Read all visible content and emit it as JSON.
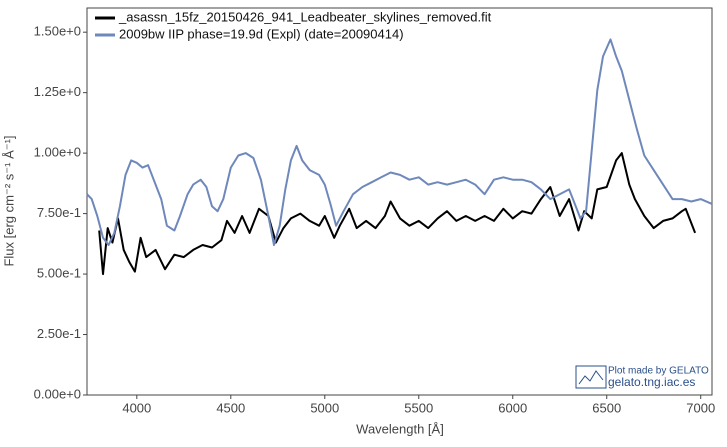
{
  "chart_data": {
    "type": "line",
    "xlabel": "Wavelength [Å]",
    "ylabel": "Flux [erg cm⁻² s⁻¹ Å⁻¹]",
    "legend": "upper left",
    "credit": [
      "Plot made by GELATO",
      "gelato.tng.iac.es"
    ],
    "xlim": [
      3735,
      7060
    ],
    "xticks": [
      4000,
      4500,
      5000,
      5500,
      6000,
      6500,
      7000
    ],
    "ylim": [
      0,
      1.6
    ],
    "yticks": [
      {
        "value": 0,
        "label": "0.00e+0"
      },
      {
        "value": 0.25,
        "label": "2.50e-1"
      },
      {
        "value": 0.5,
        "label": "5.00e-1"
      },
      {
        "value": 0.75,
        "label": "7.50e-1"
      },
      {
        "value": 1.0,
        "label": "1.00e+0"
      },
      {
        "value": 1.25,
        "label": "1.25e+0"
      },
      {
        "value": 1.5,
        "label": "1.50e+0"
      }
    ],
    "series": [
      {
        "name": "_asassn_15fz_20150426_941_Leadbeater_skylines_removed.fit",
        "color": "#000000",
        "x": [
          3800,
          3820,
          3845,
          3870,
          3900,
          3930,
          3960,
          3990,
          4020,
          4050,
          4100,
          4150,
          4200,
          4250,
          4300,
          4350,
          4400,
          4450,
          4480,
          4520,
          4560,
          4600,
          4650,
          4700,
          4740,
          4780,
          4820,
          4870,
          4920,
          4970,
          5000,
          5050,
          5080,
          5130,
          5170,
          5220,
          5270,
          5320,
          5350,
          5400,
          5450,
          5500,
          5550,
          5600,
          5650,
          5700,
          5750,
          5800,
          5850,
          5900,
          5950,
          6000,
          6050,
          6100,
          6150,
          6200,
          6250,
          6300,
          6350,
          6380,
          6420,
          6450,
          6500,
          6550,
          6580,
          6620,
          6650,
          6700,
          6750,
          6800,
          6850,
          6900,
          6920,
          6970
        ],
        "values": [
          0.68,
          0.5,
          0.69,
          0.63,
          0.73,
          0.6,
          0.55,
          0.51,
          0.65,
          0.57,
          0.6,
          0.52,
          0.58,
          0.57,
          0.6,
          0.62,
          0.61,
          0.64,
          0.72,
          0.67,
          0.74,
          0.67,
          0.77,
          0.74,
          0.63,
          0.69,
          0.73,
          0.75,
          0.72,
          0.7,
          0.74,
          0.65,
          0.7,
          0.77,
          0.69,
          0.72,
          0.69,
          0.74,
          0.8,
          0.73,
          0.7,
          0.72,
          0.69,
          0.73,
          0.76,
          0.72,
          0.74,
          0.72,
          0.74,
          0.72,
          0.77,
          0.73,
          0.76,
          0.75,
          0.81,
          0.86,
          0.74,
          0.81,
          0.68,
          0.76,
          0.73,
          0.85,
          0.86,
          0.97,
          1.0,
          0.87,
          0.81,
          0.74,
          0.69,
          0.72,
          0.73,
          0.76,
          0.77,
          0.67
        ]
      },
      {
        "name": "2009bw  IIP  phase=19.9d (Expl)  (date=20090414)",
        "color": "#6f88bb",
        "x": [
          3735,
          3760,
          3790,
          3820,
          3850,
          3880,
          3910,
          3940,
          3970,
          4000,
          4030,
          4060,
          4100,
          4130,
          4160,
          4200,
          4230,
          4270,
          4300,
          4340,
          4370,
          4400,
          4430,
          4460,
          4500,
          4540,
          4580,
          4620,
          4660,
          4700,
          4730,
          4760,
          4790,
          4820,
          4850,
          4880,
          4920,
          4970,
          5000,
          5030,
          5060,
          5100,
          5150,
          5200,
          5250,
          5300,
          5350,
          5400,
          5450,
          5500,
          5550,
          5600,
          5650,
          5700,
          5750,
          5800,
          5850,
          5900,
          5950,
          6000,
          6050,
          6100,
          6150,
          6200,
          6250,
          6300,
          6330,
          6360,
          6390,
          6420,
          6450,
          6480,
          6520,
          6550,
          6580,
          6620,
          6660,
          6700,
          6750,
          6800,
          6850,
          6900,
          6950,
          7000,
          7060
        ],
        "values": [
          0.83,
          0.81,
          0.74,
          0.65,
          0.62,
          0.67,
          0.78,
          0.91,
          0.97,
          0.96,
          0.94,
          0.95,
          0.87,
          0.81,
          0.7,
          0.68,
          0.74,
          0.83,
          0.87,
          0.89,
          0.86,
          0.78,
          0.76,
          0.81,
          0.94,
          0.99,
          1.0,
          0.98,
          0.89,
          0.74,
          0.62,
          0.7,
          0.85,
          0.97,
          1.03,
          0.97,
          0.93,
          0.91,
          0.87,
          0.79,
          0.7,
          0.76,
          0.83,
          0.86,
          0.88,
          0.9,
          0.92,
          0.91,
          0.89,
          0.9,
          0.87,
          0.88,
          0.87,
          0.88,
          0.89,
          0.87,
          0.83,
          0.89,
          0.9,
          0.89,
          0.89,
          0.88,
          0.85,
          0.81,
          0.83,
          0.85,
          0.79,
          0.73,
          0.76,
          1.01,
          1.26,
          1.4,
          1.47,
          1.4,
          1.34,
          1.22,
          1.1,
          0.99,
          0.93,
          0.87,
          0.81,
          0.81,
          0.8,
          0.81,
          0.79
        ]
      }
    ]
  }
}
